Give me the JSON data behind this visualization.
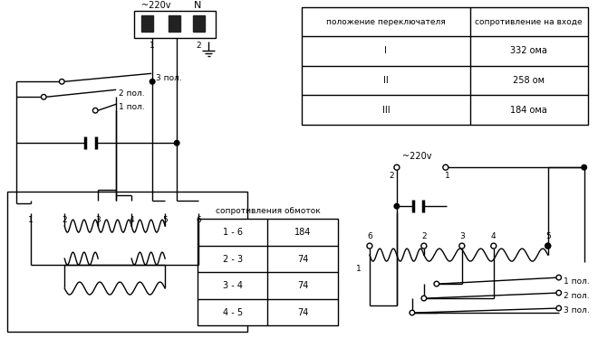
{
  "bg_color": "#ffffff",
  "line_color": "#000000",
  "table1_header": [
    "положение переключателя",
    "сопротивление на входе"
  ],
  "table1_rows": [
    [
      "I",
      "332 ома"
    ],
    [
      "II",
      "258 ом"
    ],
    [
      "III",
      "184 ома"
    ]
  ],
  "table2_header": "сопротивления обмоток",
  "table2_rows": [
    [
      "1 - 6",
      "184"
    ],
    [
      "2 - 3",
      "74"
    ],
    [
      "3 - 4",
      "74"
    ],
    [
      "4 - 5",
      "74"
    ]
  ],
  "label_220v_left": "~220v",
  "label_N": "N",
  "label_220v_right": "~220v",
  "switch_labels_left": [
    "3 пол.",
    "2 пол.",
    "1 пол."
  ],
  "switch_labels_right": [
    "1 пол.",
    "2 пол.",
    "3 пол."
  ],
  "terminal_labels": [
    "1",
    "2",
    "3",
    "4",
    "5",
    "6"
  ],
  "plug_pins": [
    "1",
    "2"
  ]
}
